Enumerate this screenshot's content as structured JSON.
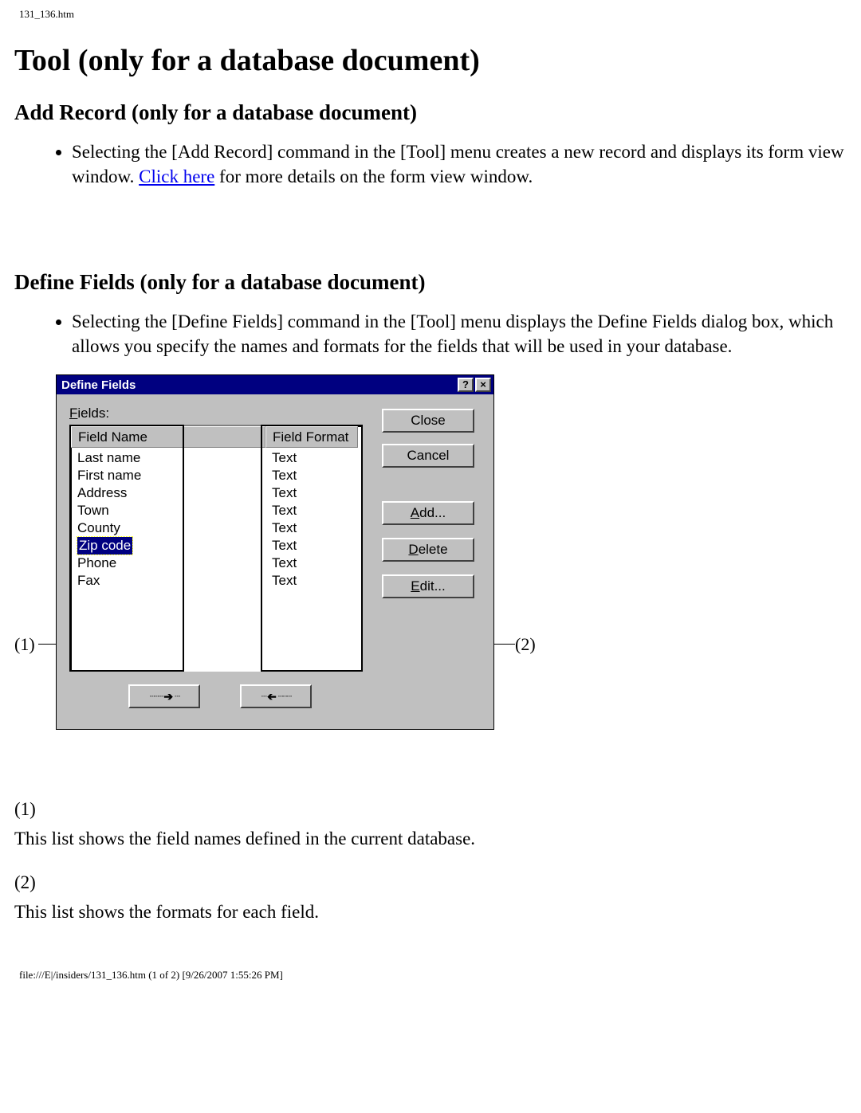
{
  "header_path": "131_136.htm",
  "h1": "Tool (only for a database document)",
  "section1": {
    "heading": "Add Record (only for a database document)",
    "bullet_prefix": "Selecting the [Add Record] command in the [Tool] menu creates a new record and displays its form view window. ",
    "link_text": "Click here",
    "bullet_suffix": " for more details on the form view window."
  },
  "section2": {
    "heading": "Define Fields (only for a database document)",
    "bullet": "Selecting the [Define Fields] command in the [Tool] menu displays the Define Fields dialog box, which allows you specify the names and formats for the fields that will be used in your database."
  },
  "dialog": {
    "title": "Define Fields",
    "help_glyph": "?",
    "close_glyph": "×",
    "fields_label_prefix": "F",
    "fields_label_rest": "ields:",
    "col1": "Field Name",
    "col2": "Field Format",
    "rows": [
      {
        "name": "Last name",
        "format": "Text",
        "selected": false
      },
      {
        "name": "First name",
        "format": "Text",
        "selected": false
      },
      {
        "name": "Address",
        "format": "Text",
        "selected": false
      },
      {
        "name": "Town",
        "format": "Text",
        "selected": false
      },
      {
        "name": "County",
        "format": "Text",
        "selected": false
      },
      {
        "name": "Zip code",
        "format": "Text",
        "selected": true
      },
      {
        "name": "Phone",
        "format": "Text",
        "selected": false
      },
      {
        "name": "Fax",
        "format": "Text",
        "selected": false
      }
    ],
    "buttons": {
      "close": "Close",
      "cancel": "Cancel",
      "add_ul": "A",
      "add_rest": "dd...",
      "delete_ul": "D",
      "delete_rest": "elete",
      "edit_ul": "E",
      "edit_rest": "dit..."
    }
  },
  "callouts": {
    "c1": "(1)",
    "c2": "(2)"
  },
  "notes": {
    "n1_num": "(1)",
    "n1_text": "This list shows the field names defined in the current database.",
    "n2_num": "(2)",
    "n2_text": "This list shows the formats for each field."
  },
  "footer": "file:///E|/insiders/131_136.htm (1 of 2) [9/26/2007 1:55:26 PM]"
}
